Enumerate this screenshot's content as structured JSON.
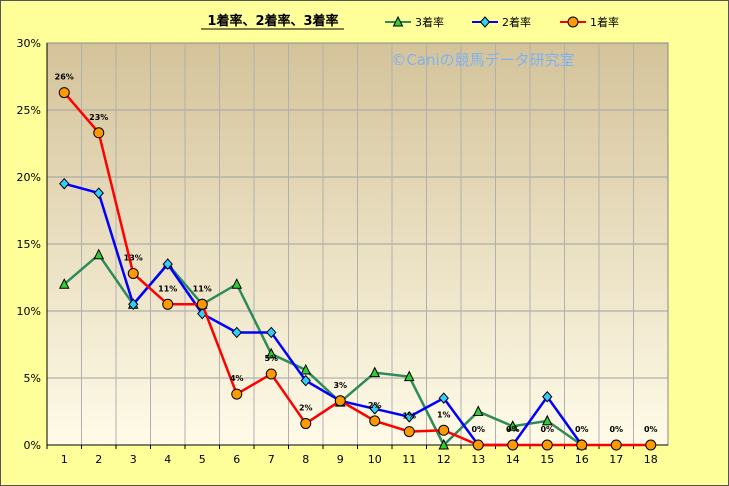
{
  "chart_data": {
    "type": "line",
    "title": "1着率、2着率、3着率",
    "watermark": "©Caniの競馬データ研究室",
    "categories": [
      "1",
      "2",
      "3",
      "4",
      "5",
      "6",
      "7",
      "8",
      "9",
      "10",
      "11",
      "12",
      "13",
      "14",
      "15",
      "16",
      "17",
      "18"
    ],
    "ylim": [
      0,
      30
    ],
    "yticks": [
      "0%",
      "5%",
      "10%",
      "15%",
      "20%",
      "25%",
      "30%"
    ],
    "grid": true,
    "legend_position": "top",
    "series": [
      {
        "name": "3着率",
        "color": "#2e8b57",
        "marker": "triangle",
        "marker_fill": "#33cc33",
        "values": [
          12.0,
          14.2,
          10.5,
          13.5,
          10.5,
          12.0,
          6.8,
          5.6,
          3.2,
          5.4,
          5.1,
          0.0,
          2.5,
          1.4,
          1.8,
          0.0,
          null,
          null
        ]
      },
      {
        "name": "2着率",
        "color": "#0000ff",
        "marker": "diamond",
        "marker_fill": "#33ccff",
        "values": [
          19.5,
          18.8,
          10.5,
          13.5,
          9.8,
          8.4,
          8.4,
          4.8,
          3.3,
          2.7,
          2.1,
          3.5,
          0.0,
          0.0,
          3.6,
          0.0,
          null,
          null
        ]
      },
      {
        "name": "1着率",
        "color": "#ff0000",
        "marker": "circle",
        "marker_fill": "#ff9900",
        "values": [
          26.3,
          23.3,
          12.8,
          10.5,
          10.5,
          3.8,
          5.3,
          1.6,
          3.3,
          1.8,
          1.0,
          1.1,
          0.0,
          0.0,
          0.0,
          0.0,
          0.0,
          0.0
        ],
        "data_labels": [
          "26%",
          "23%",
          "13%",
          "11%",
          "11%",
          "4%",
          "5%",
          "2%",
          "3%",
          "2%",
          "1%",
          "1%",
          "0%",
          "0%",
          "0%",
          "0%",
          "0%",
          "0%"
        ]
      }
    ]
  }
}
